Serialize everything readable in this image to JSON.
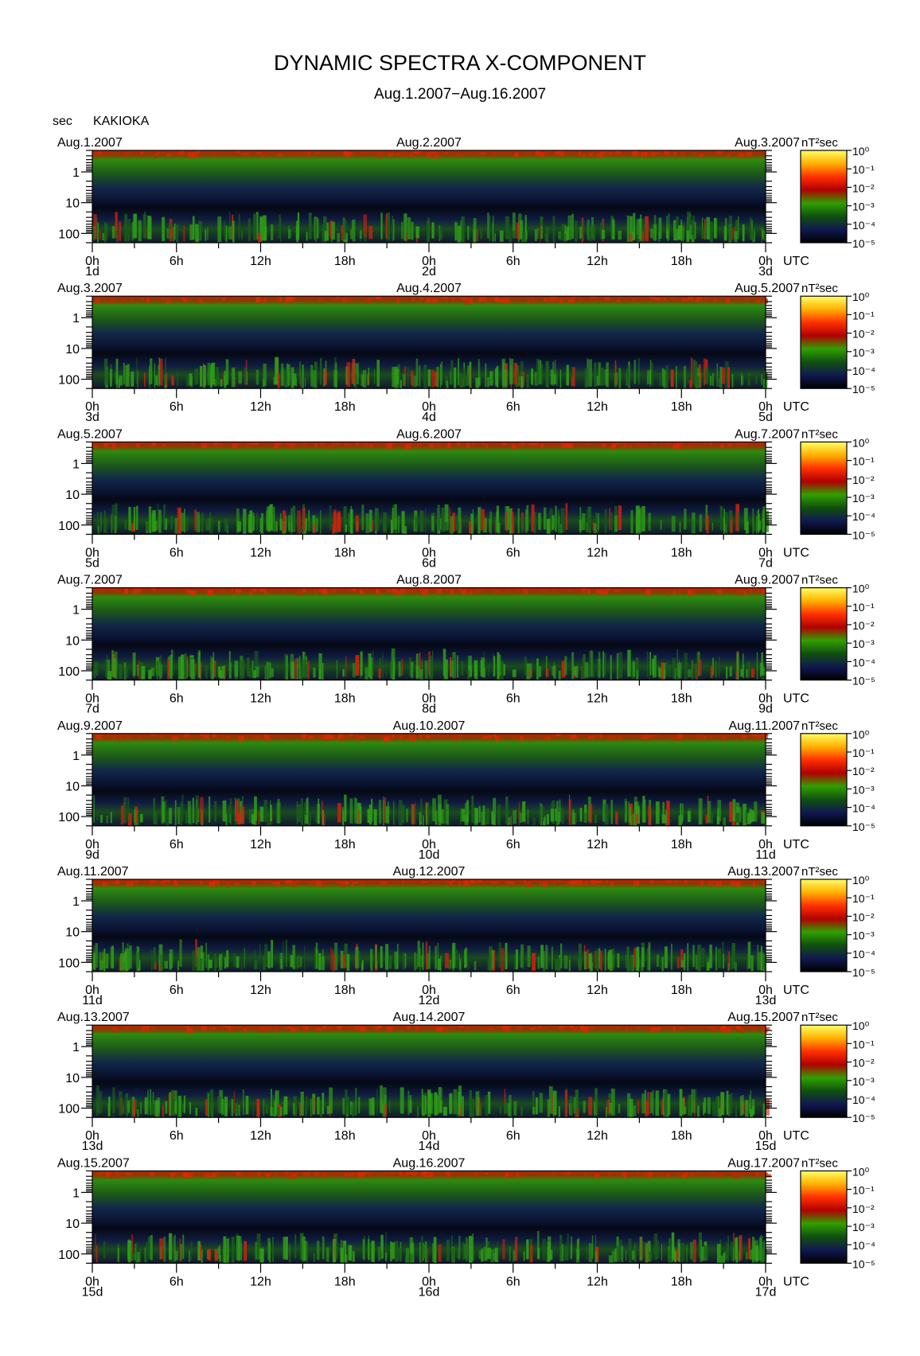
{
  "chart_data": {
    "type": "spectrogram",
    "title": "DYNAMIC SPECTRA X-COMPONENT",
    "subtitle": "Aug.1.2007−Aug.16.2007",
    "ylabel": "sec",
    "station": "KAKIOKA",
    "xunit": "UTC",
    "colorbar_label": "nT²sec",
    "ylog": true,
    "ylim": [
      200,
      0.2
    ],
    "yticks": [
      1,
      10,
      100
    ],
    "yminor_ticks": [
      0.2,
      0.3,
      0.4,
      0.5,
      0.6,
      0.7,
      0.8,
      0.9,
      2,
      3,
      4,
      5,
      6,
      7,
      8,
      9,
      20,
      30,
      40,
      50,
      60,
      70,
      80,
      90,
      200
    ],
    "xlim": [
      0,
      48
    ],
    "xticks": [
      {
        "value": 0,
        "label": "0h"
      },
      {
        "value": 6,
        "label": "6h"
      },
      {
        "value": 12,
        "label": "12h"
      },
      {
        "value": 18,
        "label": "18h"
      },
      {
        "value": 24,
        "label": "0h"
      },
      {
        "value": 30,
        "label": "6h"
      },
      {
        "value": 36,
        "label": "12h"
      },
      {
        "value": 42,
        "label": "18h"
      },
      {
        "value": 48,
        "label": "0h"
      }
    ],
    "xminor_ticks": [
      3,
      9,
      15,
      21,
      27,
      33,
      39,
      45
    ],
    "clog": true,
    "clim": [
      1e-05,
      1
    ],
    "cticks": [
      {
        "value": 1,
        "label": "10⁰"
      },
      {
        "value": 0.1,
        "label": "10⁻¹"
      },
      {
        "value": 0.01,
        "label": "10⁻²"
      },
      {
        "value": 0.001,
        "label": "10⁻³"
      },
      {
        "value": 0.0001,
        "label": "10⁻⁴"
      },
      {
        "value": 1e-05,
        "label": "10⁻⁵"
      }
    ],
    "colors": [
      "#ffff66",
      "#ffb000",
      "#ff3000",
      "#b00000",
      "#30a000",
      "#105010",
      "#101850",
      "#000000"
    ],
    "panels": [
      {
        "dates": [
          "Aug.1.2007",
          "Aug.2.2007",
          "Aug.3.2007"
        ],
        "days": [
          "1d",
          "2d",
          "3d"
        ]
      },
      {
        "dates": [
          "Aug.3.2007",
          "Aug.4.2007",
          "Aug.5.2007"
        ],
        "days": [
          "3d",
          "4d",
          "5d"
        ]
      },
      {
        "dates": [
          "Aug.5.2007",
          "Aug.6.2007",
          "Aug.7.2007"
        ],
        "days": [
          "5d",
          "6d",
          "7d"
        ]
      },
      {
        "dates": [
          "Aug.7.2007",
          "Aug.8.2007",
          "Aug.9.2007"
        ],
        "days": [
          "7d",
          "8d",
          "9d"
        ]
      },
      {
        "dates": [
          "Aug.9.2007",
          "Aug.10.2007",
          "Aug.11.2007"
        ],
        "days": [
          "9d",
          "10d",
          "11d"
        ]
      },
      {
        "dates": [
          "Aug.11.2007",
          "Aug.12.2007",
          "Aug.13.2007"
        ],
        "days": [
          "11d",
          "12d",
          "13d"
        ]
      },
      {
        "dates": [
          "Aug.13.2007",
          "Aug.14.2007",
          "Aug.15.2007"
        ],
        "days": [
          "13d",
          "14d",
          "15d"
        ]
      },
      {
        "dates": [
          "Aug.15.2007",
          "Aug.16.2007",
          "Aug.17.2007"
        ],
        "days": [
          "15d",
          "16d",
          "17d"
        ]
      }
    ]
  }
}
